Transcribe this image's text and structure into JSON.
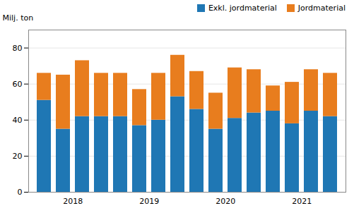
{
  "chart_data": {
    "type": "bar",
    "stacked": true,
    "ylabel": "Milj. ton",
    "categories": [
      null,
      "2018",
      null,
      null,
      null,
      "2019",
      null,
      null,
      null,
      "2020",
      null,
      null,
      null,
      "2021",
      null,
      null
    ],
    "series": [
      {
        "name": "Exkl. jordmaterial",
        "color": "#1f77b4",
        "values": [
          51,
          35,
          42,
          42,
          42,
          37,
          40,
          53,
          46,
          35,
          41,
          44,
          45,
          38,
          45,
          42
        ]
      },
      {
        "name": "Jordmaterial",
        "color": "#e87d1e",
        "values": [
          15,
          30,
          31,
          24,
          24,
          20,
          26,
          23,
          21,
          20,
          28,
          24,
          14,
          23,
          23,
          24
        ]
      }
    ],
    "ylim": [
      0,
      90
    ],
    "yticks": [
      0,
      20,
      40,
      60,
      80
    ],
    "grid": true,
    "legend": "upper right"
  }
}
